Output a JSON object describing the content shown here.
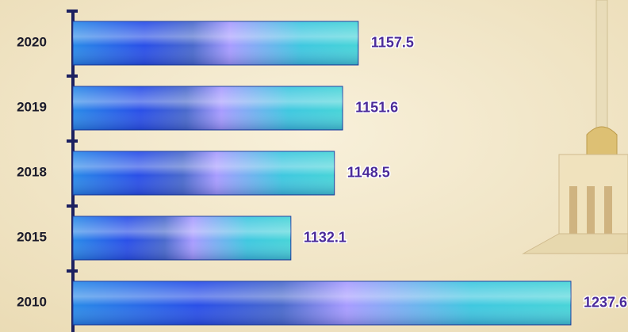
{
  "chart_data": {
    "type": "hbar",
    "categories": [
      "2020",
      "2019",
      "2018",
      "2015",
      "2010"
    ],
    "values": [
      1157.5,
      1151.6,
      1148.5,
      1132.1,
      1237.6
    ],
    "color": "#2a4fe8",
    "xlim": [
      1050,
      1240
    ]
  }
}
